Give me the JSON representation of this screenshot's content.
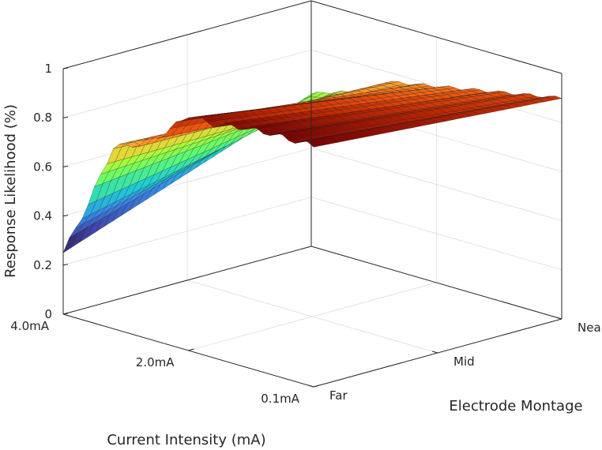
{
  "chart_data": {
    "type": "surface",
    "title": "",
    "xlabel": "Current Intensity (mA)",
    "ylabel": "Electrode Montage",
    "zlabel": "Response Likelihood (%)",
    "x_ticks": [
      "4.0mA",
      "2.0mA",
      "0.1mA"
    ],
    "y_ticks": [
      "Far",
      "Mid",
      "Near"
    ],
    "z_ticks": [
      "0",
      "0.2",
      "0.4",
      "0.6",
      "0.8",
      "1"
    ],
    "zlim": [
      0,
      1
    ],
    "grid": true,
    "colormap": "turbo",
    "surface_profile_far_edge": {
      "intensity_position": [
        0,
        0.1,
        0.2,
        0.3,
        0.4,
        0.5,
        0.6,
        0.7,
        0.8,
        0.9,
        1.0
      ],
      "response_likelihood": [
        0.25,
        0.48,
        0.74,
        0.78,
        0.85,
        0.96,
        0.95,
        0.97,
        0.98,
        0.98,
        0.98
      ]
    },
    "surface_profile_near_edge": {
      "intensity_position": [
        0,
        0.1,
        0.2,
        0.3,
        0.4,
        0.5,
        0.6,
        0.7,
        0.8,
        0.9,
        1.0
      ],
      "response_likelihood": [
        0.62,
        0.66,
        0.68,
        0.76,
        0.78,
        0.8,
        0.82,
        0.84,
        0.86,
        0.88,
        0.9
      ]
    }
  }
}
